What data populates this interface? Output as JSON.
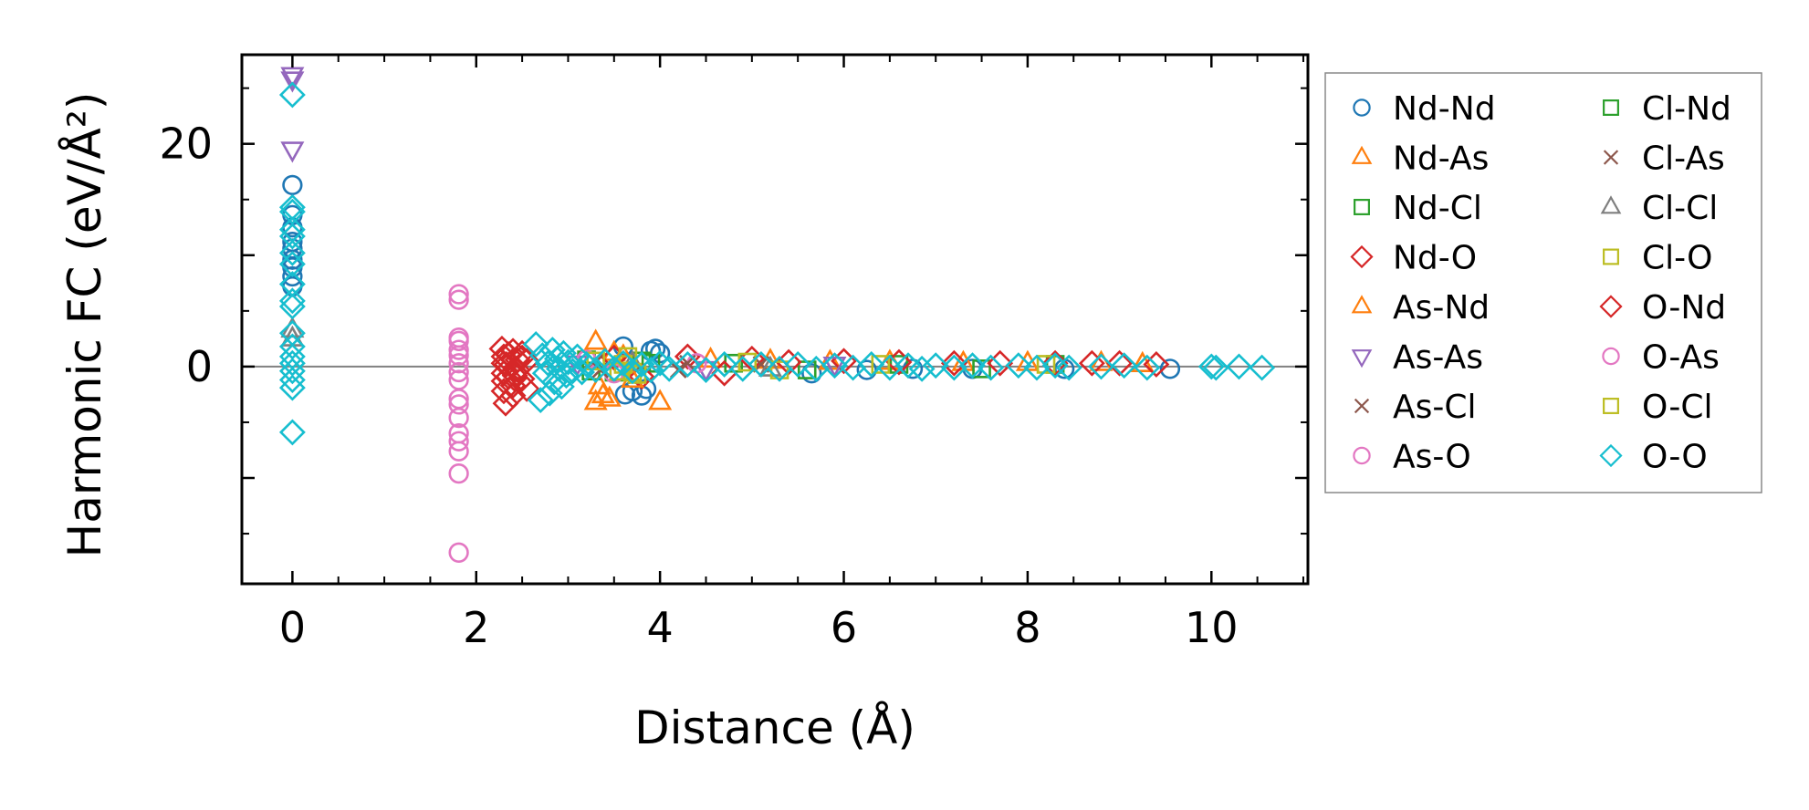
{
  "chart_data": {
    "type": "scatter",
    "title": "",
    "xlabel": "Distance (Å)",
    "ylabel": "Harmonic FC (eV/Å²)",
    "xlim": [
      -0.55,
      11.05
    ],
    "ylim": [
      -19.5,
      28
    ],
    "xticks": [
      0,
      2,
      4,
      6,
      8,
      10
    ],
    "yticks": [
      -10,
      0,
      10,
      20
    ],
    "yticklabels": [
      "0",
      "20"
    ],
    "grid": false,
    "legend_position": "outside-right",
    "reference_line": {
      "y": 0,
      "color": "#808080"
    },
    "series": [
      {
        "name": "Nd-Nd",
        "marker": "circle",
        "color": "#1f77b4",
        "points": [
          [
            0,
            16.3
          ],
          [
            0,
            13.6
          ],
          [
            0,
            12.5
          ],
          [
            0,
            11.2
          ],
          [
            0,
            10.6
          ],
          [
            0,
            9.6
          ],
          [
            0,
            8.9
          ],
          [
            0,
            8.1
          ],
          [
            0,
            7.2
          ],
          [
            3.6,
            1.8
          ],
          [
            3.62,
            -2.5
          ],
          [
            3.7,
            -2.2
          ],
          [
            3.8,
            -2.6
          ],
          [
            3.85,
            -2.0
          ],
          [
            3.9,
            1.4
          ],
          [
            3.95,
            1.6
          ],
          [
            4.0,
            1.2
          ],
          [
            5.65,
            -0.6
          ],
          [
            6.25,
            -0.3
          ],
          [
            6.75,
            -0.2
          ],
          [
            7.4,
            -0.2
          ],
          [
            8.4,
            -0.2
          ],
          [
            9.55,
            -0.2
          ]
        ]
      },
      {
        "name": "Nd-As",
        "marker": "triangle-up",
        "color": "#ff7f0e",
        "points": [
          [
            3.3,
            2.2
          ],
          [
            3.3,
            -3.2
          ],
          [
            3.38,
            -2.6
          ],
          [
            3.45,
            -2.9
          ],
          [
            3.5,
            1.2
          ],
          [
            4.0,
            -3.2
          ],
          [
            4.55,
            0.6
          ],
          [
            5.2,
            0.5
          ],
          [
            5.85,
            0.4
          ],
          [
            6.5,
            0.4
          ],
          [
            7.3,
            0.3
          ],
          [
            8.0,
            0.3
          ],
          [
            8.8,
            0.3
          ],
          [
            9.25,
            0.2
          ]
        ]
      },
      {
        "name": "Nd-Cl",
        "marker": "square",
        "color": "#2ca02c",
        "points": [
          [
            3.2,
            0.6
          ],
          [
            3.5,
            -0.5
          ],
          [
            3.9,
            0.3
          ],
          [
            4.8,
            0.3
          ],
          [
            5.6,
            -0.3
          ],
          [
            6.6,
            0.2
          ],
          [
            7.5,
            -0.2
          ],
          [
            8.3,
            0.2
          ]
        ]
      },
      {
        "name": "Nd-O",
        "marker": "diamond",
        "color": "#d62728",
        "points": [
          [
            2.28,
            1.6
          ],
          [
            2.3,
            0.9
          ],
          [
            2.3,
            0.3
          ],
          [
            2.3,
            -0.6
          ],
          [
            2.3,
            -1.3
          ],
          [
            2.3,
            -2.2
          ],
          [
            2.32,
            -3.3
          ],
          [
            2.35,
            1.1
          ],
          [
            2.35,
            -0.9
          ],
          [
            2.4,
            1.4
          ],
          [
            2.4,
            -1.7
          ],
          [
            2.4,
            -2.6
          ],
          [
            2.45,
            0.6
          ],
          [
            2.45,
            -0.3
          ],
          [
            2.5,
            1.2
          ],
          [
            2.5,
            -1.1
          ],
          [
            2.55,
            0.5
          ],
          [
            2.55,
            -2.0
          ],
          [
            3.5,
            0.8
          ],
          [
            3.8,
            -0.9
          ],
          [
            4.3,
            0.9
          ],
          [
            4.7,
            -0.6
          ],
          [
            5.0,
            0.7
          ],
          [
            5.4,
            0.4
          ],
          [
            6.0,
            0.5
          ],
          [
            6.6,
            0.4
          ],
          [
            7.2,
            0.3
          ],
          [
            7.7,
            0.3
          ],
          [
            8.3,
            0.3
          ],
          [
            8.7,
            0.3
          ],
          [
            9.0,
            0.3
          ],
          [
            9.4,
            0.2
          ]
        ]
      },
      {
        "name": "As-Nd",
        "marker": "triangle-up",
        "color": "#ff7f0e",
        "points": [
          [
            3.34,
            -1.8
          ],
          [
            3.6,
            0.9
          ],
          [
            3.7,
            -1.2
          ]
        ]
      },
      {
        "name": "As-As",
        "marker": "triangle-down",
        "color": "#9467bd",
        "points": [
          [
            0,
            26.2
          ],
          [
            0,
            25.8
          ],
          [
            0,
            19.5
          ],
          [
            3.1,
            0.3
          ],
          [
            4.5,
            -0.2
          ],
          [
            5.9,
            0.2
          ]
        ]
      },
      {
        "name": "As-Cl",
        "marker": "x",
        "color": "#8c564b",
        "points": [
          [
            3.3,
            0.4
          ],
          [
            4.2,
            -0.3
          ],
          [
            5.1,
            0.2
          ]
        ]
      },
      {
        "name": "As-O",
        "marker": "circle",
        "color": "#e377c2",
        "points": [
          [
            1.81,
            6.5
          ],
          [
            1.81,
            6.0
          ],
          [
            1.81,
            2.6
          ],
          [
            1.81,
            2.3
          ],
          [
            1.81,
            1.0
          ],
          [
            1.81,
            0.3
          ],
          [
            1.81,
            -0.5
          ],
          [
            1.81,
            -2.9
          ],
          [
            1.81,
            -3.4
          ],
          [
            1.81,
            -6.0
          ],
          [
            1.81,
            -6.7
          ],
          [
            1.81,
            -7.6
          ],
          [
            1.81,
            -9.6
          ],
          [
            1.81,
            -16.7
          ],
          [
            3.2,
            0.6
          ],
          [
            3.5,
            -0.6
          ],
          [
            4.4,
            0.3
          ]
        ]
      },
      {
        "name": "Cl-Nd",
        "marker": "square",
        "color": "#2ca02c",
        "points": [
          [
            3.25,
            -0.4
          ],
          [
            3.8,
            0.5
          ]
        ]
      },
      {
        "name": "Cl-As",
        "marker": "x",
        "color": "#8c564b",
        "points": [
          [
            3.35,
            -0.3
          ],
          [
            4.3,
            0.3
          ]
        ]
      },
      {
        "name": "Cl-Cl",
        "marker": "triangle-up",
        "color": "#7f7f7f",
        "points": [
          [
            0,
            3.3
          ],
          [
            0,
            2.5
          ],
          [
            3.7,
            0.3
          ],
          [
            5.2,
            -0.2
          ]
        ]
      },
      {
        "name": "Cl-O",
        "marker": "square",
        "color": "#bcbd22",
        "points": [
          [
            3.3,
            0.5
          ],
          [
            3.55,
            -0.4
          ],
          [
            3.65,
            0.9
          ],
          [
            3.75,
            -0.7
          ],
          [
            4.95,
            0.4
          ],
          [
            5.3,
            -0.3
          ],
          [
            6.4,
            0.2
          ],
          [
            8.2,
            0.2
          ]
        ]
      },
      {
        "name": "O-Nd",
        "marker": "diamond",
        "color": "#d62728",
        "points": [
          [
            2.33,
            0.2
          ],
          [
            2.42,
            -0.8
          ],
          [
            2.5,
            0.8
          ]
        ]
      },
      {
        "name": "O-As",
        "marker": "circle",
        "color": "#e377c2",
        "points": [
          [
            1.81,
            1.5
          ],
          [
            1.81,
            -1.2
          ],
          [
            1.81,
            -4.6
          ]
        ]
      },
      {
        "name": "O-Cl",
        "marker": "square",
        "color": "#bcbd22",
        "points": [
          [
            3.6,
            0.2
          ],
          [
            3.7,
            -0.5
          ]
        ]
      },
      {
        "name": "O-O",
        "marker": "diamond",
        "color": "#17becf",
        "points": [
          [
            0,
            24.4
          ],
          [
            0,
            14.3
          ],
          [
            0,
            13.9
          ],
          [
            0,
            12.3
          ],
          [
            0,
            11.7
          ],
          [
            0,
            10.2
          ],
          [
            0,
            9.2
          ],
          [
            0,
            7.4
          ],
          [
            0,
            5.9
          ],
          [
            0,
            5.4
          ],
          [
            0,
            3.0
          ],
          [
            0,
            1.8
          ],
          [
            0,
            0.9
          ],
          [
            0,
            0.3
          ],
          [
            0,
            -0.4
          ],
          [
            0,
            -1.2
          ],
          [
            0,
            -1.9
          ],
          [
            0,
            -5.9
          ],
          [
            2.65,
            2.0
          ],
          [
            2.7,
            -3.0
          ],
          [
            2.72,
            1.0
          ],
          [
            2.75,
            -0.6
          ],
          [
            2.78,
            0.3
          ],
          [
            2.8,
            -2.4
          ],
          [
            2.83,
            1.5
          ],
          [
            2.85,
            -1.4
          ],
          [
            2.88,
            0.7
          ],
          [
            2.9,
            -0.2
          ],
          [
            2.93,
            -1.8
          ],
          [
            2.95,
            1.2
          ],
          [
            2.98,
            -0.8
          ],
          [
            3.0,
            0.4
          ],
          [
            3.05,
            -0.4
          ],
          [
            3.1,
            0.9
          ],
          [
            3.15,
            -0.5
          ],
          [
            3.2,
            0.2
          ],
          [
            3.3,
            -0.3
          ],
          [
            3.4,
            0.5
          ],
          [
            3.5,
            -0.2
          ],
          [
            3.6,
            0.3
          ],
          [
            3.7,
            -0.4
          ],
          [
            3.8,
            0.2
          ],
          [
            3.9,
            -0.3
          ],
          [
            4.0,
            0.3
          ],
          [
            4.1,
            -0.2
          ],
          [
            4.3,
            0.2
          ],
          [
            4.5,
            -0.3
          ],
          [
            4.7,
            0.2
          ],
          [
            4.9,
            -0.2
          ],
          [
            5.1,
            0.2
          ],
          [
            5.3,
            -0.2
          ],
          [
            5.5,
            0.2
          ],
          [
            5.7,
            -0.2
          ],
          [
            5.9,
            0.1
          ],
          [
            6.1,
            -0.1
          ],
          [
            6.3,
            0.2
          ],
          [
            6.5,
            -0.1
          ],
          [
            6.7,
            0.1
          ],
          [
            6.85,
            -0.2
          ],
          [
            7.0,
            0.1
          ],
          [
            7.2,
            -0.1
          ],
          [
            7.4,
            0.1
          ],
          [
            7.6,
            -0.1
          ],
          [
            7.9,
            0.1
          ],
          [
            8.1,
            -0.1
          ],
          [
            8.3,
            0.1
          ],
          [
            8.45,
            -0.1
          ],
          [
            8.8,
            0.0
          ],
          [
            9.05,
            0.1
          ],
          [
            9.3,
            -0.1
          ],
          [
            10.0,
            0.0
          ],
          [
            10.05,
            -0.1
          ],
          [
            10.3,
            0.0
          ],
          [
            10.55,
            -0.1
          ]
        ]
      }
    ]
  }
}
